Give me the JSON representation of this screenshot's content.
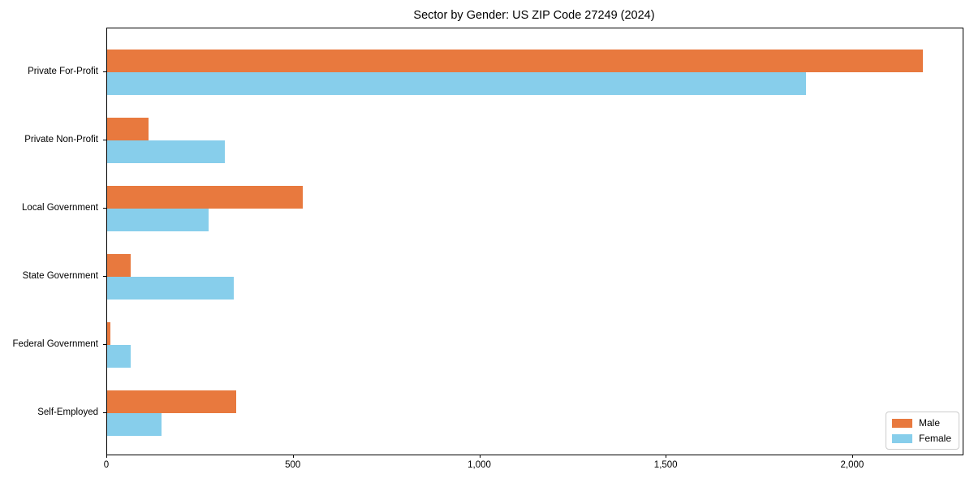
{
  "chart_data": {
    "type": "bar",
    "orientation": "horizontal",
    "title": "Sector by Gender: US ZIP Code 27249 (2024)",
    "categories": [
      "Private For-Profit",
      "Private Non-Profit",
      "Local Government",
      "State Government",
      "Federal Government",
      "Self-Employed"
    ],
    "series": [
      {
        "name": "Male",
        "color": "#e8793e",
        "values": [
          2187,
          111,
          525,
          63,
          9,
          346
        ]
      },
      {
        "name": "Female",
        "color": "#87ceeb",
        "values": [
          1874,
          316,
          272,
          339,
          64,
          146
        ]
      }
    ],
    "xlabel": "",
    "ylabel": "",
    "xlim": [
      0,
      2294
    ],
    "xticks": [
      {
        "value": 0,
        "label": "0"
      },
      {
        "value": 500,
        "label": "500"
      },
      {
        "value": 1000,
        "label": "1,000"
      },
      {
        "value": 1500,
        "label": "1,500"
      },
      {
        "value": 2000,
        "label": "2,000"
      }
    ],
    "grid": false,
    "legend": {
      "position": "lower right"
    }
  }
}
